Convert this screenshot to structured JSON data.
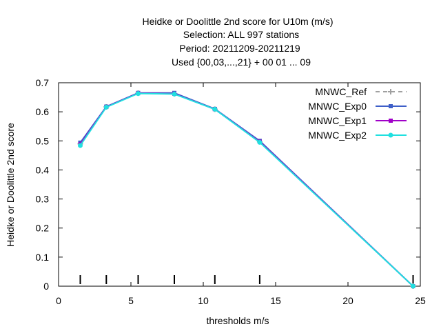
{
  "chart_data": {
    "type": "line",
    "title_lines": [
      "Heidke or Doolittle 2nd score  for U10m (m/s)",
      "Selection: ALL    997 stations",
      "Period: 20211209-20211219",
      "Used {00,03,...,21} + 00 01 ... 09"
    ],
    "xlabel": "thresholds m/s",
    "ylabel": "Heidke or Doolittle 2nd score",
    "xlim": [
      0,
      25
    ],
    "ylim": [
      0,
      0.7
    ],
    "xticks": [
      0,
      5,
      10,
      15,
      20,
      25
    ],
    "yticks": [
      0,
      0.1,
      0.2,
      0.3,
      0.4,
      0.5,
      0.6,
      0.7
    ],
    "xtick_labels": [
      "0",
      "5",
      "10",
      "15",
      "20",
      "25"
    ],
    "ytick_labels": [
      "0",
      "0.1",
      "0.2",
      "0.3",
      "0.4",
      "0.5",
      "0.6",
      "0.7"
    ],
    "grid": false,
    "legend_position": "top-right",
    "threshold_markers": [
      1.5,
      3.3,
      5.5,
      8.0,
      10.8,
      13.9,
      24.5
    ],
    "x": [
      1.5,
      3.3,
      5.5,
      8.0,
      10.8,
      13.9,
      24.5
    ],
    "series": [
      {
        "name": "MNWC_Ref",
        "color": "#a0a0a0",
        "dashed": true,
        "marker": "plus",
        "values": [
          0.49,
          0.617,
          0.664,
          0.662,
          0.609,
          0.497,
          0.0
        ]
      },
      {
        "name": "MNWC_Exp0",
        "color": "#3e5fc8",
        "dashed": false,
        "marker": "square",
        "values": [
          0.494,
          0.618,
          0.665,
          0.665,
          0.61,
          0.5,
          0.0
        ]
      },
      {
        "name": "MNWC_Exp1",
        "color": "#a000c8",
        "dashed": false,
        "marker": "square",
        "values": [
          0.488,
          0.617,
          0.664,
          0.662,
          0.609,
          0.497,
          0.0
        ]
      },
      {
        "name": "MNWC_Exp2",
        "color": "#20e0e0",
        "dashed": false,
        "marker": "circle",
        "values": [
          0.484,
          0.616,
          0.663,
          0.661,
          0.609,
          0.495,
          0.0
        ]
      }
    ]
  }
}
